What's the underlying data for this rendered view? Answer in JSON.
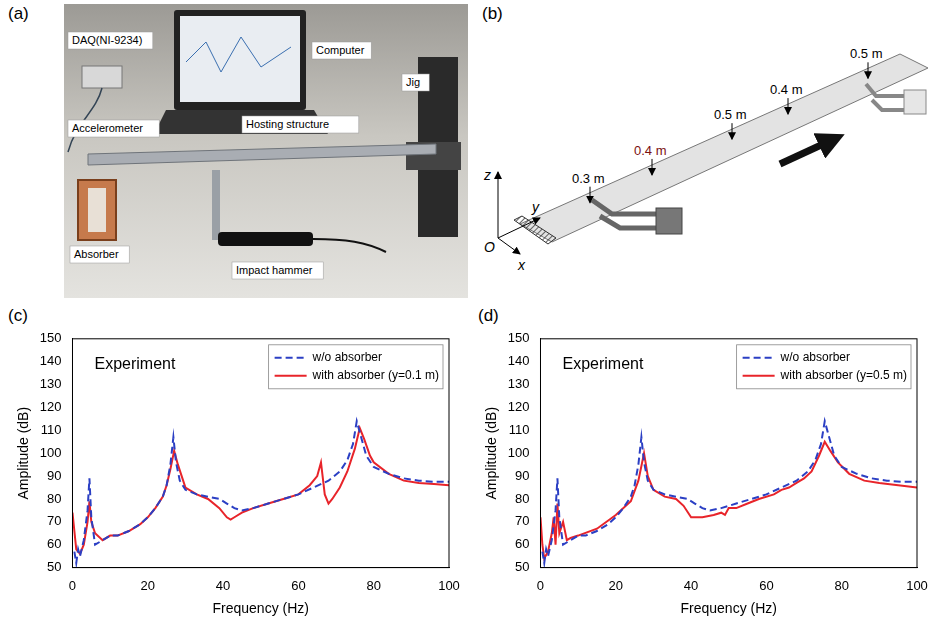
{
  "panels": {
    "a": {
      "letter": "(a)",
      "labels": [
        "Computer",
        "DAQ(NI-9234)",
        "Jig",
        "Accelerometer",
        "Hosting structure",
        "Absorber",
        "Impact hammer"
      ]
    },
    "b": {
      "letter": "(b)",
      "dimension_labels": [
        "0.3 m",
        "0.4 m",
        "0.5 m",
        "0.4 m",
        "0.5 m"
      ],
      "axis_labels": [
        "z",
        "y",
        "x",
        "O"
      ]
    }
  },
  "chart_data": [
    {
      "type": "line",
      "letter": "(c)",
      "annotation": "Experiment",
      "x_label": "Frequency (Hz)",
      "y_label": "Amplitude (dB)",
      "xlim": [
        0,
        100
      ],
      "xticks": [
        0,
        20,
        40,
        60,
        80,
        100
      ],
      "ylim": [
        50,
        150
      ],
      "yticks": [
        50,
        60,
        70,
        80,
        90,
        100,
        110,
        120,
        130,
        140,
        150
      ],
      "grid": false,
      "legend": "upper right",
      "series": [
        {
          "name": "w/o absorber",
          "color": "#2b3fc4",
          "line_style": "dashed",
          "x": [
            0.5,
            1,
            1.5,
            2,
            3,
            4,
            4.5,
            5,
            6,
            8,
            10,
            12,
            15,
            18,
            20,
            22,
            24,
            25,
            26,
            26.8,
            27.5,
            28.5,
            30,
            33,
            36,
            39,
            41,
            43,
            45,
            48,
            52,
            56,
            60,
            64,
            68,
            71,
            73,
            74.5,
            75.5,
            76.5,
            78,
            80,
            84,
            88,
            92,
            96,
            100
          ],
          "values": [
            57,
            52,
            58,
            55,
            62,
            75,
            89,
            72,
            60,
            62,
            64,
            64,
            66,
            69,
            72,
            76,
            81,
            86,
            95,
            107,
            96,
            88,
            84,
            82,
            81,
            80,
            78,
            76,
            75,
            76,
            78,
            80,
            82,
            85,
            88,
            92,
            97,
            104,
            114,
            108,
            99,
            94,
            91,
            89,
            88,
            87.5,
            87.5
          ]
        },
        {
          "name": "with absorber (y=0.1 m)",
          "color": "#e8242a",
          "line_style": "solid",
          "x": [
            0,
            0.5,
            1,
            2,
            3,
            4,
            4.5,
            5,
            6,
            8,
            10,
            12,
            15,
            18,
            20,
            22,
            24,
            25,
            26,
            27,
            28,
            30,
            33,
            36,
            39,
            41,
            42,
            43,
            45,
            48,
            52,
            56,
            60,
            63,
            65,
            66,
            67,
            68,
            69,
            71,
            73,
            75,
            76.3,
            77.5,
            79,
            80,
            84,
            88,
            92,
            96,
            100
          ],
          "values": [
            74,
            66,
            58,
            56,
            60,
            70,
            79,
            70,
            65,
            62,
            64,
            64,
            66,
            69,
            72,
            76,
            81,
            86,
            93,
            101,
            95,
            85,
            82,
            80,
            76,
            72,
            71,
            72,
            74,
            76,
            78,
            80,
            82,
            86,
            90,
            96,
            82,
            78,
            80,
            85,
            92,
            102,
            111,
            106,
            99,
            96,
            91,
            88,
            87,
            86.5,
            86
          ]
        }
      ]
    },
    {
      "type": "line",
      "letter": "(d)",
      "annotation": "Experiment",
      "x_label": "Frequency (Hz)",
      "y_label": "Amplitude (dB)",
      "xlim": [
        0,
        100
      ],
      "xticks": [
        0,
        20,
        40,
        60,
        80,
        100
      ],
      "ylim": [
        50,
        150
      ],
      "yticks": [
        50,
        60,
        70,
        80,
        90,
        100,
        110,
        120,
        130,
        140,
        150
      ],
      "grid": false,
      "legend": "upper right",
      "series": [
        {
          "name": "w/o absorber",
          "color": "#2b3fc4",
          "line_style": "dashed",
          "x": [
            0.5,
            1,
            1.5,
            2,
            3,
            4,
            4.5,
            5,
            6,
            8,
            10,
            12,
            15,
            18,
            20,
            22,
            24,
            25,
            26,
            26.8,
            27.5,
            28.5,
            30,
            33,
            36,
            39,
            41,
            43,
            45,
            48,
            52,
            56,
            60,
            64,
            68,
            71,
            73,
            74.5,
            75.5,
            76.5,
            78,
            80,
            84,
            88,
            92,
            96,
            100
          ],
          "values": [
            57,
            52,
            58,
            55,
            62,
            75,
            89,
            72,
            60,
            62,
            64,
            64,
            66,
            69,
            72,
            76,
            81,
            86,
            95,
            107,
            96,
            88,
            84,
            82,
            81,
            80,
            78,
            76,
            75,
            76,
            78,
            80,
            82,
            85,
            88,
            92,
            97,
            104,
            114,
            108,
            99,
            94,
            91,
            89,
            88,
            87.5,
            87.5
          ]
        },
        {
          "name": "with absorber (y=0.5 m)",
          "color": "#e8242a",
          "line_style": "solid",
          "x": [
            0,
            0.5,
            1,
            2,
            3,
            3.5,
            4,
            4.5,
            5,
            6,
            7,
            8,
            10,
            15,
            20,
            24,
            26,
            27.5,
            28.5,
            30,
            33,
            36,
            38,
            40,
            43,
            46,
            48,
            49,
            50,
            52,
            55,
            58,
            62,
            64,
            66,
            68,
            70,
            72,
            74,
            75.5,
            77,
            79,
            82,
            86,
            90,
            95,
            100
          ],
          "values": [
            72,
            60,
            54,
            57,
            65,
            72,
            60,
            78,
            65,
            70,
            62,
            63,
            64,
            67,
            73,
            79,
            88,
            100,
            90,
            84,
            81,
            80,
            77,
            72,
            72,
            73,
            74,
            73,
            76,
            76,
            78,
            80,
            82,
            84,
            85,
            87,
            89,
            92,
            99,
            105,
            101,
            96,
            91,
            88,
            87,
            86,
            85
          ]
        }
      ]
    }
  ]
}
